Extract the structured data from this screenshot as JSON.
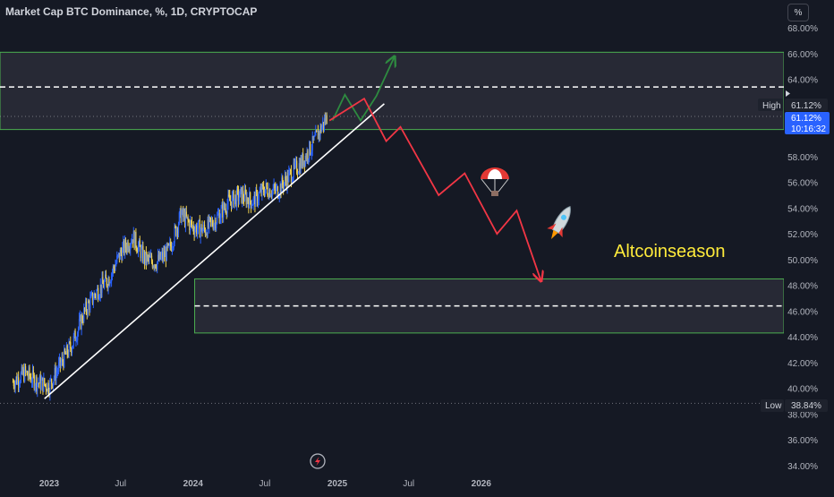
{
  "header": {
    "title": "Market Cap BTC Dominance, %, 1D, CRYPTOCAP",
    "unit_button": "%"
  },
  "colors": {
    "background": "#151924",
    "candle_up": "#2962ff",
    "candle_down": "#f0d250",
    "trendline": "#ffffff",
    "zone_fill": "#2a2d38",
    "zone_border": "#4caf50",
    "bullish_path": "#2e8b40",
    "bearish_path": "#f23645",
    "annotation_text": "#ffeb3b",
    "price_badge": "#2962ff"
  },
  "annotations": {
    "altseason_label": "Altcoinseason",
    "parachute_icon": "parachute-icon",
    "rocket_icon": "rocket-icon",
    "lightning_icon": "lightning-icon"
  },
  "price_scale": {
    "high_label": "High",
    "high_value": "61.12%",
    "current_value": "61.12%",
    "countdown": "10:16:32",
    "low_label": "Low",
    "low_value": "38.84%"
  },
  "chart_data": {
    "type": "line",
    "title": "Market Cap BTC Dominance, %, 1D, CRYPTOCAP",
    "yaxis": {
      "min": 33.5,
      "max": 69.2,
      "ticks": [
        34,
        36,
        38,
        40,
        42,
        44,
        46,
        48,
        50,
        52,
        54,
        56,
        58,
        60,
        62,
        64,
        66,
        68
      ],
      "tick_labels": [
        "34.00%",
        "36.00%",
        "38.00%",
        "40.00%",
        "42.00%",
        "44.00%",
        "46.00%",
        "48.00%",
        "50.00%",
        "52.00%",
        "54.00%",
        "56.00%",
        "58.00%",
        "60.00%",
        "62.00%",
        "64.00%",
        "66.00%",
        "68.00%"
      ]
    },
    "xaxis": {
      "min": "2022-09-25",
      "max": "2026-08-10",
      "ticks": [
        "2023-01-01",
        "2023-07-01",
        "2024-01-01",
        "2024-07-01",
        "2025-01-01",
        "2025-07-01",
        "2026-01-01"
      ],
      "tick_labels": [
        "2023",
        "Jul",
        "2024",
        "Jul",
        "2025",
        "Jul",
        "2026"
      ]
    },
    "grid": false,
    "series": [
      {
        "x": [
          "2022-10-01",
          "2022-11-01",
          "2022-12-01",
          "2023-01-01",
          "2023-02-01",
          "2023-03-01",
          "2023-04-01",
          "2023-05-01",
          "2023-06-01",
          "2023-07-01",
          "2023-08-01",
          "2023-09-01",
          "2023-10-01",
          "2023-11-01",
          "2023-12-01",
          "2024-01-01",
          "2024-02-01",
          "2024-03-01",
          "2024-04-01",
          "2024-05-01",
          "2024-06-01",
          "2024-07-01",
          "2024-08-01",
          "2024-09-01",
          "2024-10-01",
          "2024-11-01",
          "2024-12-06"
        ],
        "y": [
          40.5,
          41.2,
          40.5,
          40.2,
          42.0,
          43.5,
          46.0,
          47.5,
          48.5,
          50.5,
          51.8,
          50.0,
          49.8,
          50.7,
          53.5,
          52.5,
          52.3,
          53.2,
          54.5,
          55.0,
          54.5,
          55.5,
          55.3,
          56.5,
          57.5,
          59.0,
          61.12
        ]
      }
    ],
    "trendline": {
      "x": [
        "2022-12-20",
        "2025-04-30"
      ],
      "y": [
        39.2,
        62.1
      ]
    },
    "zones": [
      {
        "y_from": 60.1,
        "y_to": 66.1,
        "midline": 63.4
      },
      {
        "y_from": 44.3,
        "y_to": 48.5,
        "midline": 46.4,
        "x_from": "2024-01-05"
      }
    ],
    "bullish_projection": {
      "x": [
        "2024-12-20",
        "2025-01-20",
        "2025-03-01",
        "2025-04-10",
        "2025-05-25"
      ],
      "y": [
        60.8,
        62.8,
        60.8,
        62.7,
        65.7
      ]
    },
    "bearish_projection": {
      "x": [
        "2024-12-12",
        "2025-03-10",
        "2025-05-05",
        "2025-06-10",
        "2025-09-15",
        "2025-11-20",
        "2026-02-10",
        "2026-04-01",
        "2026-06-01"
      ],
      "y": [
        60.8,
        62.5,
        59.2,
        60.3,
        55.0,
        56.7,
        52.0,
        53.8,
        48.4
      ]
    },
    "reference_lines": [
      {
        "label": "High",
        "value": 61.12
      },
      {
        "label": "Low",
        "value": 38.84
      }
    ]
  }
}
